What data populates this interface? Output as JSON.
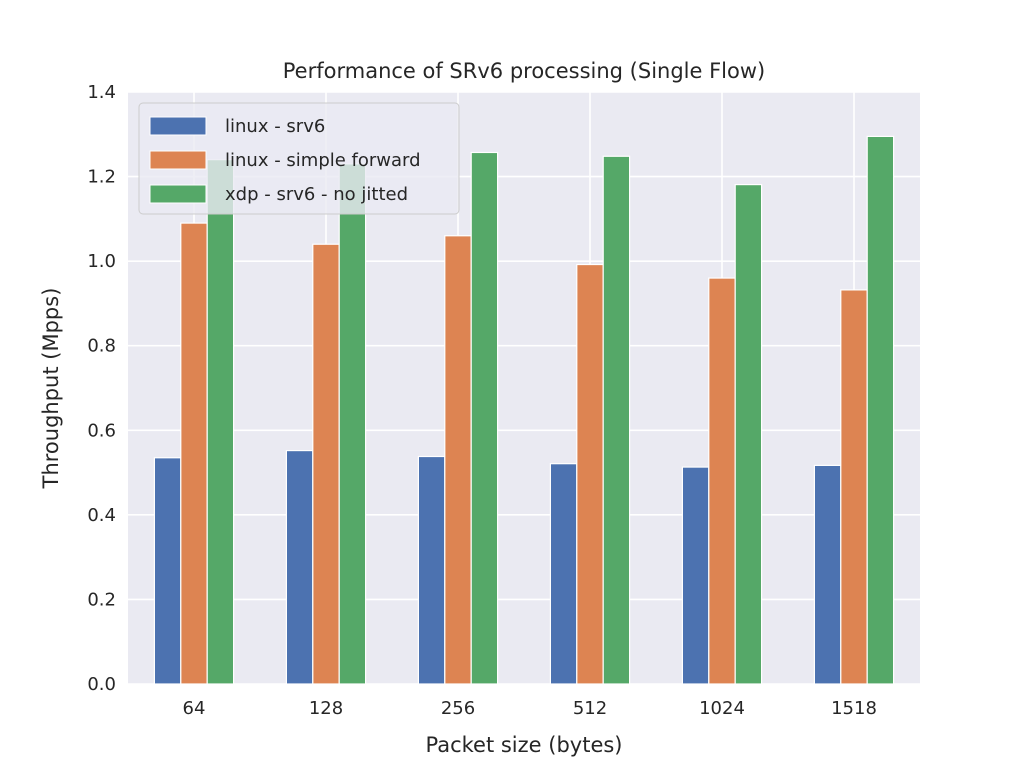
{
  "chart_data": {
    "type": "bar",
    "title": "Performance of SRv6 processing (Single Flow)",
    "xlabel": "Packet size (bytes)",
    "ylabel": "Throughput (Mpps)",
    "categories": [
      "64",
      "128",
      "256",
      "512",
      "1024",
      "1518"
    ],
    "ylim": [
      0,
      1.4
    ],
    "yticks": [
      "0.0",
      "0.2",
      "0.4",
      "0.6",
      "0.8",
      "1.0",
      "1.2",
      "1.4"
    ],
    "grid": true,
    "legend_position": "top-left",
    "background": "#eaeaf2",
    "series": [
      {
        "name": "linux - srv6",
        "color": "#4c72b0",
        "values": [
          0.535,
          0.552,
          0.538,
          0.521,
          0.513,
          0.517
        ]
      },
      {
        "name": "linux - simple forward",
        "color": "#dd8452",
        "values": [
          1.09,
          1.04,
          1.06,
          0.992,
          0.96,
          0.932
        ]
      },
      {
        "name": "xdp - srv6 - no jitted",
        "color": "#55a868",
        "values": [
          1.24,
          1.23,
          1.257,
          1.248,
          1.181,
          1.295
        ]
      }
    ]
  }
}
